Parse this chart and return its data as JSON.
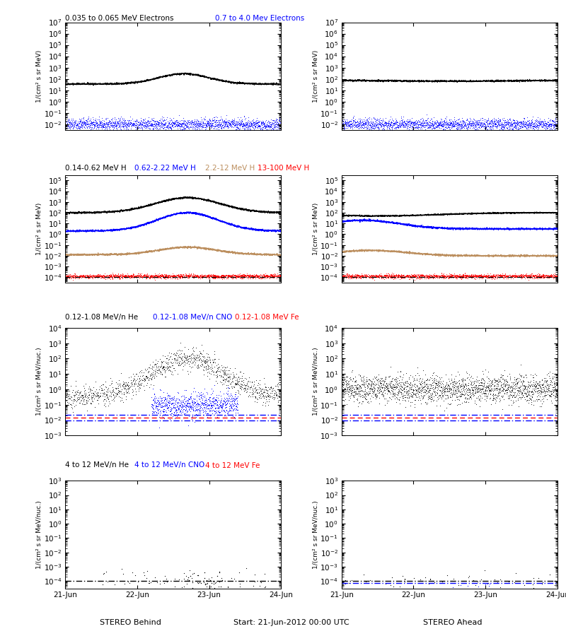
{
  "title_row1_left": "0.035 to 0.065 MeV Electrons",
  "title_row1_right": "0.7 to 4.0 Mev Electrons",
  "title_row2_left": "0.14-0.62 MeV H",
  "title_row2_left2": "0.62-2.22 MeV H",
  "title_row2_left3": "2.2-12 MeV H",
  "title_row2_left4": "13-100 MeV H",
  "title_row3_left": "0.12-1.08 MeV/n He",
  "title_row3_left2": "0.12-1.08 MeV/n CNO",
  "title_row3_left3": "0.12-1.08 MeV Fe",
  "title_row4_left": "4 to 12 MeV/n He",
  "title_row4_left2": "4 to 12 MeV/n CNO",
  "title_row4_left3": "4 to 12 MeV Fe",
  "xlabel_left": "STEREO Behind",
  "xlabel_center": "Start: 21-Jun-2012 00:00 UTC",
  "xlabel_right": "STEREO Ahead",
  "ylabel_electrons": "1/(cm² s sr MeV)",
  "ylabel_protons": "1/(cm² s sr MeV)",
  "ylabel_heavy": "1/(cm² s sr MeV/nuc.)",
  "xtick_labels": [
    "21-Jun",
    "22-Jun",
    "23-Jun",
    "24-Jun"
  ],
  "colors": {
    "black": "#000000",
    "blue": "#0000FF",
    "brown": "#BC8F5F",
    "red": "#FF0000"
  },
  "row1_ylim_lo": -2.5,
  "row1_ylim_hi": 7.0,
  "row2_ylim_lo": -4.5,
  "row2_ylim_hi": 5.5,
  "row3_ylim_lo": -3.0,
  "row3_ylim_hi": 4.0,
  "row4_ylim_lo": -4.5,
  "row4_ylim_hi": 3.0
}
